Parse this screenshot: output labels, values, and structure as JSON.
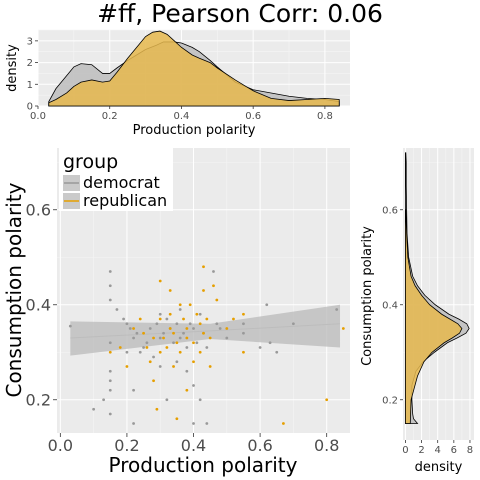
{
  "title": "#ff, Pearson Corr: 0.06",
  "colors": {
    "democrat": "#999999",
    "republican": "#E69F00",
    "fill": "#E6B84D",
    "band": "#bdbdbd"
  },
  "chart_data": [
    {
      "type": "area",
      "role": "top-marginal-density",
      "xlabel": "Production polarity",
      "ylabel": "density",
      "xlim": [
        0,
        0.87
      ],
      "ylim": [
        0,
        3.5
      ],
      "x_ticks": [
        "0.0",
        "0.2",
        "0.4",
        "0.6",
        "0.8"
      ],
      "x_tick_values": [
        0,
        0.2,
        0.4,
        0.6,
        0.8
      ],
      "y_ticks": [
        "0",
        "1",
        "2",
        "3"
      ],
      "y_tick_values": [
        0,
        1,
        2,
        3
      ],
      "series": [
        {
          "group": "democrat",
          "x": [
            0.03,
            0.05,
            0.08,
            0.1,
            0.12,
            0.15,
            0.18,
            0.2,
            0.22,
            0.25,
            0.28,
            0.3,
            0.33,
            0.35,
            0.38,
            0.4,
            0.43,
            0.45,
            0.48,
            0.5,
            0.55,
            0.6,
            0.65,
            0.7,
            0.75,
            0.8,
            0.84
          ],
          "y": [
            0.2,
            0.8,
            1.4,
            1.8,
            1.95,
            1.9,
            1.5,
            1.5,
            1.75,
            2.1,
            2.4,
            2.6,
            2.8,
            2.95,
            2.95,
            2.9,
            2.7,
            2.5,
            2.1,
            1.8,
            1.1,
            0.75,
            0.6,
            0.45,
            0.35,
            0.3,
            0.2
          ]
        },
        {
          "group": "republican",
          "x": [
            0.03,
            0.05,
            0.08,
            0.1,
            0.12,
            0.15,
            0.18,
            0.2,
            0.22,
            0.25,
            0.28,
            0.3,
            0.32,
            0.34,
            0.36,
            0.38,
            0.4,
            0.43,
            0.45,
            0.48,
            0.5,
            0.55,
            0.6,
            0.65,
            0.7,
            0.75,
            0.8,
            0.84
          ],
          "y": [
            0.15,
            0.3,
            0.6,
            0.9,
            1.1,
            1.2,
            1.1,
            1.15,
            1.55,
            2.2,
            2.8,
            3.2,
            3.4,
            3.45,
            3.3,
            3.0,
            2.7,
            2.35,
            2.2,
            2.0,
            1.75,
            1.2,
            0.7,
            0.35,
            0.25,
            0.3,
            0.35,
            0.3
          ]
        }
      ]
    },
    {
      "type": "scatter",
      "role": "main-scatter",
      "xlabel": "Production polarity",
      "ylabel": "Consumption polarity",
      "xlim": [
        -0.01,
        0.87
      ],
      "ylim": [
        0.13,
        0.73
      ],
      "x_ticks": [
        "0.0",
        "0.2",
        "0.4",
        "0.6",
        "0.8"
      ],
      "x_tick_values": [
        0,
        0.2,
        0.4,
        0.6,
        0.8
      ],
      "y_ticks": [
        "0.2",
        "0.4",
        "0.6"
      ],
      "y_tick_values": [
        0.2,
        0.4,
        0.6
      ],
      "legend": {
        "title": "group",
        "position": "top-left",
        "entries": [
          "democrat",
          "republican"
        ]
      },
      "smooth": {
        "group": "democrat",
        "x": [
          0.03,
          0.45,
          0.84
        ],
        "y": [
          0.33,
          0.345,
          0.36
        ],
        "lower": [
          0.293,
          0.328,
          0.31
        ],
        "upper": [
          0.365,
          0.36,
          0.4
        ]
      },
      "series": [
        {
          "group": "democrat",
          "points": [
            [
              0.03,
              0.355
            ],
            [
              0.1,
              0.18
            ],
            [
              0.13,
              0.2
            ],
            [
              0.15,
              0.47
            ],
            [
              0.15,
              0.44
            ],
            [
              0.15,
              0.41
            ],
            [
              0.15,
              0.32
            ],
            [
              0.15,
              0.26
            ],
            [
              0.15,
              0.24
            ],
            [
              0.15,
              0.22
            ],
            [
              0.15,
              0.17
            ],
            [
              0.17,
              0.39
            ],
            [
              0.19,
              0.37
            ],
            [
              0.2,
              0.36
            ],
            [
              0.2,
              0.3
            ],
            [
              0.21,
              0.35
            ],
            [
              0.22,
              0.33
            ],
            [
              0.22,
              0.22
            ],
            [
              0.22,
              0.15
            ],
            [
              0.23,
              0.34
            ],
            [
              0.24,
              0.3
            ],
            [
              0.25,
              0.31
            ],
            [
              0.26,
              0.32
            ],
            [
              0.27,
              0.35
            ],
            [
              0.28,
              0.29
            ],
            [
              0.29,
              0.36
            ],
            [
              0.3,
              0.38
            ],
            [
              0.3,
              0.33
            ],
            [
              0.3,
              0.27
            ],
            [
              0.31,
              0.34
            ],
            [
              0.32,
              0.37
            ],
            [
              0.32,
              0.2
            ],
            [
              0.33,
              0.35
            ],
            [
              0.34,
              0.32
            ],
            [
              0.35,
              0.36
            ],
            [
              0.35,
              0.28
            ],
            [
              0.36,
              0.39
            ],
            [
              0.36,
              0.33
            ],
            [
              0.37,
              0.34
            ],
            [
              0.38,
              0.31
            ],
            [
              0.38,
              0.26
            ],
            [
              0.39,
              0.36
            ],
            [
              0.4,
              0.35
            ],
            [
              0.4,
              0.23
            ],
            [
              0.4,
              0.15
            ],
            [
              0.41,
              0.32
            ],
            [
              0.42,
              0.38
            ],
            [
              0.42,
              0.2
            ],
            [
              0.43,
              0.34
            ],
            [
              0.44,
              0.31
            ],
            [
              0.44,
              0.15
            ],
            [
              0.46,
              0.47
            ],
            [
              0.47,
              0.36
            ],
            [
              0.48,
              0.35
            ],
            [
              0.5,
              0.33
            ],
            [
              0.55,
              0.36
            ],
            [
              0.55,
              0.34
            ],
            [
              0.6,
              0.31
            ],
            [
              0.62,
              0.4
            ],
            [
              0.63,
              0.32
            ],
            [
              0.65,
              0.3
            ],
            [
              0.7,
              0.36
            ],
            [
              0.83,
              0.39
            ]
          ]
        },
        {
          "group": "republican",
          "points": [
            [
              0.15,
              0.3
            ],
            [
              0.18,
              0.31
            ],
            [
              0.2,
              0.27
            ],
            [
              0.22,
              0.35
            ],
            [
              0.24,
              0.37
            ],
            [
              0.25,
              0.34
            ],
            [
              0.26,
              0.31
            ],
            [
              0.27,
              0.28
            ],
            [
              0.28,
              0.33
            ],
            [
              0.28,
              0.24
            ],
            [
              0.29,
              0.18
            ],
            [
              0.3,
              0.45
            ],
            [
              0.3,
              0.37
            ],
            [
              0.3,
              0.3
            ],
            [
              0.31,
              0.33
            ],
            [
              0.32,
              0.31
            ],
            [
              0.33,
              0.43
            ],
            [
              0.33,
              0.38
            ],
            [
              0.33,
              0.35
            ],
            [
              0.34,
              0.34
            ],
            [
              0.34,
              0.27
            ],
            [
              0.35,
              0.32
            ],
            [
              0.35,
              0.16
            ],
            [
              0.36,
              0.4
            ],
            [
              0.36,
              0.3
            ],
            [
              0.37,
              0.37
            ],
            [
              0.38,
              0.35
            ],
            [
              0.38,
              0.33
            ],
            [
              0.38,
              0.22
            ],
            [
              0.39,
              0.4
            ],
            [
              0.4,
              0.32
            ],
            [
              0.4,
              0.28
            ],
            [
              0.41,
              0.38
            ],
            [
              0.42,
              0.36
            ],
            [
              0.42,
              0.3
            ],
            [
              0.43,
              0.48
            ],
            [
              0.43,
              0.43
            ],
            [
              0.43,
              0.34
            ],
            [
              0.44,
              0.37
            ],
            [
              0.45,
              0.33
            ],
            [
              0.45,
              0.27
            ],
            [
              0.46,
              0.44
            ],
            [
              0.47,
              0.41
            ],
            [
              0.5,
              0.35
            ],
            [
              0.52,
              0.37
            ],
            [
              0.55,
              0.38
            ],
            [
              0.55,
              0.3
            ],
            [
              0.67,
              0.15
            ],
            [
              0.8,
              0.2
            ],
            [
              0.85,
              0.35
            ]
          ]
        }
      ]
    },
    {
      "type": "area",
      "role": "right-marginal-density",
      "xlabel": "density",
      "ylabel": "Consumption polarity",
      "xlim": [
        -0.3,
        8.5
      ],
      "ylim": [
        0.13,
        0.73
      ],
      "x_ticks": [
        "0",
        "2",
        "4",
        "6",
        "8"
      ],
      "x_tick_values": [
        0,
        2,
        4,
        6,
        8
      ],
      "y_ticks": [
        "0.2",
        "0.4",
        "0.6"
      ],
      "y_tick_values": [
        0.2,
        0.4,
        0.6
      ],
      "series": [
        {
          "group": "democrat",
          "y": [
            0.15,
            0.16,
            0.17,
            0.2,
            0.23,
            0.26,
            0.28,
            0.3,
            0.32,
            0.33,
            0.34,
            0.35,
            0.36,
            0.37,
            0.38,
            0.4,
            0.42,
            0.44,
            0.46,
            0.5,
            0.55,
            0.6,
            0.65,
            0.7,
            0.72
          ],
          "x": [
            1.5,
            1.0,
            0.9,
            0.8,
            0.8,
            1.3,
            2.2,
            3.6,
            5.2,
            6.4,
            7.5,
            7.9,
            7.6,
            6.6,
            5.4,
            3.7,
            2.4,
            1.5,
            0.9,
            0.4,
            0.2,
            0.15,
            0.1,
            0.1,
            0.05
          ]
        },
        {
          "group": "republican",
          "y": [
            0.15,
            0.2,
            0.25,
            0.28,
            0.3,
            0.32,
            0.33,
            0.34,
            0.35,
            0.36,
            0.37,
            0.38,
            0.4,
            0.42,
            0.44,
            0.46,
            0.5,
            0.55,
            0.6
          ],
          "x": [
            0.6,
            0.7,
            1.5,
            2.3,
            3.3,
            4.8,
            5.8,
            6.7,
            7.0,
            6.5,
            5.5,
            4.5,
            3.0,
            2.0,
            1.2,
            0.7,
            0.3,
            0.15,
            0.05
          ]
        }
      ]
    }
  ]
}
